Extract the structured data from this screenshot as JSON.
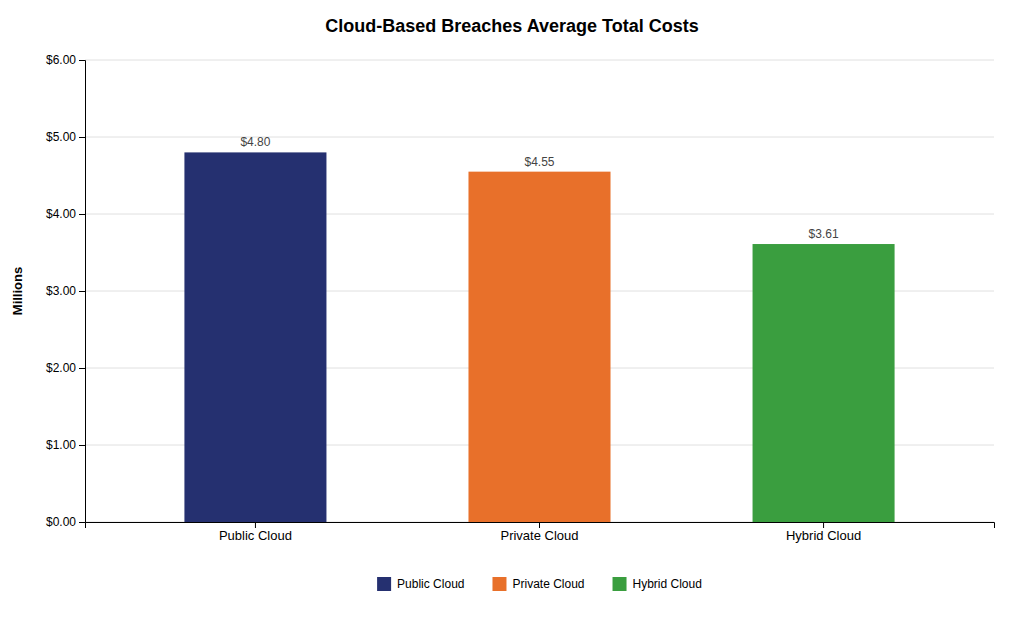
{
  "chart_data": {
    "type": "bar",
    "title": "Cloud-Based Breaches Average Total Costs",
    "categories": [
      "Public Cloud",
      "Private Cloud",
      "Hybrid Cloud"
    ],
    "values": [
      4.8,
      4.55,
      3.61
    ],
    "value_labels": [
      "$4.80",
      "$4.55",
      "$3.61"
    ],
    "data_labels": true,
    "colors": [
      "#253070",
      "#e8702a",
      "#3a9e3f"
    ],
    "ylabel": "Millions",
    "ylim": [
      0,
      6.0
    ],
    "yticks": [
      {
        "value": 0.0,
        "label": "$0.00"
      },
      {
        "value": 1.0,
        "label": "$1.00"
      },
      {
        "value": 2.0,
        "label": "$2.00"
      },
      {
        "value": 3.0,
        "label": "$3.00"
      },
      {
        "value": 4.0,
        "label": "$4.00"
      },
      {
        "value": 5.0,
        "label": "$5.00"
      },
      {
        "value": 6.0,
        "label": "$6.00"
      }
    ],
    "grid": true,
    "legend": "bottom"
  }
}
